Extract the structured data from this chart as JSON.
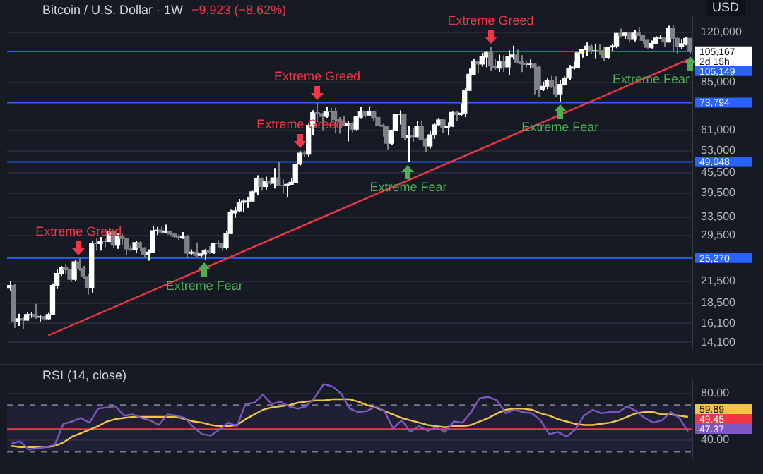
{
  "chart_data": [
    {
      "type": "candlestick",
      "title": "Bitcoin / U.S. Dollar · 1W",
      "subtitle": "−9,923 (−8.62%)",
      "ylabel": "USD",
      "colors": [
        "#ffffff",
        "#7f8187",
        "#ffffff",
        "#7f8187",
        "#ffffff",
        "#ffffff",
        "#7f8187",
        "#ffffff",
        "#7f8187",
        "#ffffff",
        "#ffffff",
        "#ffffff",
        "#ffffff",
        "#7f8187",
        "#7f8187",
        "#ffffff",
        "#7f8187",
        "#7f8187",
        "#7f8187",
        "#ffffff",
        "#7f8187",
        "#ffffff",
        "#7f8187",
        "#ffffff",
        "#7f8187",
        "#ffffff",
        "#7f8187",
        "#7f8187",
        "#7f8187",
        "#ffffff",
        "#7f8187",
        "#7f8187",
        "#ffffff",
        "#ffffff",
        "#ffffff",
        "#7f8187",
        "#ffffff",
        "#7f8187",
        "#7f8187",
        "#7f8187",
        "#ffffff",
        "#7f8187",
        "#ffffff",
        "#7f8187",
        "#ffffff",
        "#ffffff",
        "#7f8187",
        "#ffffff",
        "#7f8187",
        "#7f8187",
        "#ffffff",
        "#ffffff",
        "#ffffff",
        "#ffffff",
        "#ffffff",
        "#ffffff",
        "#ffffff",
        "#ffffff",
        "#7f8187",
        "#ffffff",
        "#7f8187",
        "#ffffff",
        "#7f8187",
        "#7f8187",
        "#ffffff",
        "#ffffff",
        "#ffffff",
        "#ffffff",
        "#7f8187",
        "#ffffff",
        "#ffffff",
        "#7f8187",
        "#7f8187",
        "#ffffff",
        "#7f8187",
        "#7f8187",
        "#7f8187",
        "#7f8187",
        "#ffffff",
        "#7f8187",
        "#ffffff",
        "#ffffff",
        "#7f8187",
        "#ffffff",
        "#7f8187",
        "#7f8187",
        "#7f8187",
        "#7f8187",
        "#ffffff",
        "#ffffff",
        "#ffffff",
        "#7f8187",
        "#ffffff",
        "#7f8187",
        "#ffffff",
        "#7f8187",
        "#7f8187",
        "#ffffff",
        "#ffffff",
        "#ffffff",
        "#7f8187",
        "#ffffff",
        "#ffffff",
        "#7f8187",
        "#ffffff",
        "#ffffff",
        "#ffffff",
        "#ffffff",
        "#7f8187",
        "#ffffff",
        "#ffffff",
        "#7f8187",
        "#7f8187",
        "#ffffff",
        "#7f8187",
        "#ffffff",
        "#ffffff",
        "#7f8187",
        "#7f8187",
        "#7f8187",
        "#ffffff",
        "#7f8187",
        "#7f8187",
        "#ffffff",
        "#ffffff",
        "#7f8187",
        "#7f8187",
        "#ffffff",
        "#ffffff",
        "#ffffff",
        "#ffffff",
        "#ffffff",
        "#ffffff",
        "#ffffff",
        "#7f8187",
        "#ffffff",
        "#7f8187",
        "#7f8187",
        "#ffffff",
        "#ffffff",
        "#ffffff",
        "#7f8187",
        "#ffffff",
        "#7f8187",
        "#ffffff",
        "#7f8187",
        "#7f8187",
        "#7f8187",
        "#ffffff",
        "#ffffff",
        "#ffffff",
        "#7f8187",
        "#ffffff",
        "#7f8187",
        "#7f8187",
        "#ffffff",
        "#ffffff",
        "#7f8187"
      ],
      "categories": [
        null,
        null,
        null,
        null,
        null,
        null,
        null,
        null,
        null,
        null,
        null,
        null,
        null,
        null,
        null,
        null,
        null,
        null,
        null,
        null,
        null,
        null,
        null,
        null,
        null,
        null,
        null,
        null,
        null,
        null,
        null,
        null,
        null,
        null,
        null,
        null,
        null,
        null,
        null,
        null,
        null,
        null,
        null,
        null,
        null,
        null,
        null,
        null,
        null,
        null,
        null,
        null,
        null,
        null,
        null,
        null,
        null,
        null,
        null,
        null,
        null,
        null,
        null,
        null,
        null,
        null,
        null,
        null,
        null,
        null,
        null,
        null,
        null,
        null,
        null,
        null,
        null,
        null,
        null,
        null,
        null,
        null,
        null,
        null,
        null,
        null,
        null,
        null,
        null,
        null,
        null,
        null,
        null,
        null,
        null,
        null,
        null,
        null,
        null,
        null,
        null,
        null,
        null,
        null,
        null,
        null,
        null,
        null,
        null,
        null,
        null,
        null,
        null,
        null,
        null,
        null,
        null,
        null,
        null,
        null,
        null,
        null,
        null,
        null,
        null,
        null,
        null,
        null,
        null,
        null,
        null,
        null,
        null,
        null,
        null,
        null,
        null,
        null,
        null,
        null,
        null,
        null,
        null,
        null,
        null,
        null,
        null,
        null,
        null,
        null,
        null,
        null,
        null,
        null,
        null,
        null,
        null,
        null
      ],
      "ohlc": [
        [
          20500,
          21500,
          20100,
          20900
        ],
        [
          20900,
          21100,
          15600,
          16300
        ],
        [
          16300,
          17200,
          15800,
          16600
        ],
        [
          16600,
          16800,
          15500,
          16450
        ],
        [
          16450,
          17400,
          16400,
          17100
        ],
        [
          17100,
          17400,
          16700,
          17100
        ],
        [
          17100,
          18400,
          16600,
          16800
        ],
        [
          16800,
          17000,
          16300,
          16850
        ],
        [
          16850,
          16950,
          16400,
          16600
        ],
        [
          16600,
          17300,
          16500,
          17100
        ],
        [
          17100,
          21200,
          17100,
          20900
        ],
        [
          20900,
          23300,
          20400,
          22700
        ],
        [
          22700,
          23900,
          22300,
          23700
        ],
        [
          23700,
          24200,
          22700,
          23300
        ],
        [
          23300,
          23400,
          21400,
          21800
        ],
        [
          21800,
          25000,
          21500,
          24600
        ],
        [
          24600,
          25200,
          23100,
          23500
        ],
        [
          23500,
          23900,
          21900,
          22200
        ],
        [
          22200,
          22600,
          19600,
          20600
        ],
        [
          20600,
          28400,
          19900,
          28000
        ],
        [
          28000,
          28900,
          26600,
          27900
        ],
        [
          27900,
          29200,
          26600,
          28400
        ],
        [
          28400,
          28800,
          27200,
          28300
        ],
        [
          28300,
          31000,
          28200,
          30300
        ],
        [
          30300,
          30400,
          27100,
          27600
        ],
        [
          27600,
          30000,
          26900,
          29300
        ],
        [
          29300,
          29800,
          27700,
          28900
        ],
        [
          28900,
          29000,
          25800,
          26900
        ],
        [
          26900,
          27500,
          26500,
          26800
        ],
        [
          26800,
          28400,
          26100,
          28100
        ],
        [
          28100,
          28400,
          26500,
          27100
        ],
        [
          27100,
          27200,
          25400,
          25800
        ],
        [
          25800,
          26800,
          24800,
          26300
        ],
        [
          26300,
          31400,
          26200,
          30500
        ],
        [
          30500,
          31300,
          29600,
          30600
        ],
        [
          30600,
          31400,
          29800,
          30200
        ],
        [
          30200,
          31800,
          29900,
          30300
        ],
        [
          30300,
          30400,
          29500,
          29800
        ],
        [
          29800,
          30100,
          28900,
          29300
        ],
        [
          29300,
          29700,
          28600,
          29000
        ],
        [
          29000,
          30200,
          28800,
          29300
        ],
        [
          29300,
          29700,
          25200,
          26100
        ],
        [
          26100,
          26800,
          25800,
          26300
        ],
        [
          26300,
          28100,
          25400,
          25700
        ],
        [
          25700,
          26100,
          25300,
          26000
        ],
        [
          26000,
          26900,
          24900,
          26600
        ],
        [
          26600,
          27400,
          26000,
          26200
        ],
        [
          26200,
          28000,
          26000,
          28000
        ],
        [
          28000,
          28600,
          27200,
          27900
        ],
        [
          27900,
          28000,
          26600,
          27100
        ],
        [
          27100,
          30400,
          26800,
          29900
        ],
        [
          29900,
          35200,
          29800,
          34500
        ],
        [
          34500,
          35900,
          33400,
          35000
        ],
        [
          35000,
          38000,
          34600,
          37100
        ],
        [
          37100,
          37900,
          34800,
          37400
        ],
        [
          37400,
          38400,
          35700,
          37400
        ],
        [
          37400,
          40200,
          37100,
          39900
        ],
        [
          39900,
          44700,
          39000,
          43800
        ],
        [
          43800,
          44000,
          40200,
          41400
        ],
        [
          41400,
          44300,
          40500,
          42900
        ],
        [
          42900,
          43800,
          41800,
          42300
        ],
        [
          42300,
          47000,
          40800,
          43900
        ],
        [
          43900,
          48900,
          41500,
          41700
        ],
        [
          41700,
          43500,
          39500,
          41600
        ],
        [
          41600,
          42200,
          38500,
          42000
        ],
        [
          42000,
          43800,
          41900,
          42600
        ],
        [
          42600,
          48500,
          42300,
          48300
        ],
        [
          48300,
          52800,
          47800,
          52100
        ],
        [
          52100,
          52900,
          50600,
          51700
        ],
        [
          51700,
          64000,
          50900,
          63100
        ],
        [
          63100,
          70100,
          59100,
          68900
        ],
        [
          68900,
          73794,
          64500,
          68400
        ],
        [
          68400,
          68900,
          60800,
          67200
        ],
        [
          67200,
          71700,
          66500,
          69600
        ],
        [
          69600,
          71300,
          64500,
          69400
        ],
        [
          69400,
          71300,
          59700,
          65700
        ],
        [
          65700,
          66800,
          59600,
          64900
        ],
        [
          64900,
          67200,
          62800,
          63100
        ],
        [
          63100,
          65000,
          56500,
          63900
        ],
        [
          63900,
          64500,
          60200,
          61500
        ],
        [
          61500,
          67400,
          60700,
          66900
        ],
        [
          66900,
          71900,
          66300,
          69300
        ],
        [
          69300,
          69500,
          66700,
          67800
        ],
        [
          67800,
          72000,
          67600,
          69600
        ],
        [
          69600,
          70000,
          65100,
          66600
        ],
        [
          66600,
          66900,
          63000,
          63200
        ],
        [
          63200,
          63800,
          58400,
          62700
        ],
        [
          62700,
          63000,
          53500,
          55800
        ],
        [
          55800,
          61300,
          55000,
          60800
        ],
        [
          60800,
          68400,
          60600,
          68100
        ],
        [
          68100,
          70000,
          63500,
          68200
        ],
        [
          68200,
          68300,
          57100,
          58100
        ],
        [
          58100,
          62700,
          49048,
          58700
        ],
        [
          58700,
          61800,
          56100,
          58400
        ],
        [
          58400,
          64900,
          57800,
          62800
        ],
        [
          62800,
          65000,
          57200,
          57300
        ],
        [
          57300,
          58000,
          52500,
          54800
        ],
        [
          54800,
          60600,
          53800,
          59100
        ],
        [
          59100,
          64100,
          57500,
          63400
        ],
        [
          63400,
          66500,
          62700,
          65600
        ],
        [
          65600,
          66000,
          59800,
          62100
        ],
        [
          62100,
          64400,
          58900,
          62800
        ],
        [
          62800,
          69400,
          62400,
          69000
        ],
        [
          69000,
          69500,
          65100,
          68000
        ],
        [
          68000,
          73600,
          67400,
          68700
        ],
        [
          68700,
          81500,
          66800,
          80400
        ],
        [
          80400,
          93400,
          80200,
          89800
        ],
        [
          89800,
          99600,
          89400,
          97900
        ],
        [
          97900,
          98700,
          90800,
          96400
        ],
        [
          96400,
          104000,
          94600,
          101200
        ],
        [
          101200,
          105200,
          94200,
          104300
        ],
        [
          104300,
          108300,
          92200,
          95200
        ],
        [
          95200,
          99900,
          92600,
          93700
        ],
        [
          93700,
          102700,
          91300,
          98300
        ],
        [
          98300,
          102500,
          91200,
          94500
        ],
        [
          94500,
          106000,
          89300,
          101300
        ],
        [
          101300,
          109400,
          99500,
          102600
        ],
        [
          102600,
          106400,
          96600,
          97700
        ],
        [
          97700,
          102500,
          91200,
          96500
        ],
        [
          96500,
          98700,
          94100,
          96100
        ],
        [
          96100,
          99500,
          93400,
          96300
        ],
        [
          96300,
          96500,
          78200,
          94200
        ],
        [
          94200,
          95000,
          76600,
          80700
        ],
        [
          80700,
          85300,
          80000,
          82600
        ],
        [
          82600,
          87400,
          81100,
          86100
        ],
        [
          86100,
          88800,
          81600,
          82300
        ],
        [
          82300,
          88500,
          77000,
          78400
        ],
        [
          78400,
          86100,
          74500,
          83700
        ],
        [
          83700,
          88400,
          83100,
          87500
        ],
        [
          87500,
          95700,
          86500,
          93700
        ],
        [
          93700,
          97900,
          92800,
          94300
        ],
        [
          94300,
          104300,
          93400,
          104100
        ],
        [
          104100,
          106700,
          100700,
          106500
        ],
        [
          106500,
          111900,
          102000,
          109000
        ],
        [
          109000,
          110700,
          103100,
          105700
        ],
        [
          105700,
          110500,
          100400,
          105700
        ],
        [
          105700,
          110600,
          102700,
          105600
        ],
        [
          105600,
          108900,
          98200,
          100900
        ],
        [
          100900,
          108500,
          99600,
          108400
        ],
        [
          108400,
          110500,
          105100,
          109200
        ],
        [
          109200,
          119500,
          107500,
          119100
        ],
        [
          119100,
          123200,
          115700,
          117300
        ],
        [
          117300,
          120200,
          114700,
          119400
        ],
        [
          119400,
          119800,
          112000,
          114200
        ],
        [
          114200,
          122300,
          112700,
          119300
        ],
        [
          119300,
          124500,
          117200,
          117400
        ],
        [
          117400,
          117600,
          110800,
          113500
        ],
        [
          113500,
          113800,
          107300,
          108200
        ],
        [
          108200,
          113400,
          107300,
          111100
        ],
        [
          111100,
          116800,
          110600,
          115300
        ],
        [
          115300,
          117900,
          114700,
          115300
        ],
        [
          115300,
          115400,
          108600,
          112200
        ],
        [
          112200,
          125600,
          111800,
          123500
        ],
        [
          123500,
          126200,
          104600,
          115100
        ],
        [
          115100,
          115900,
          103500,
          108600
        ],
        [
          108600,
          114000,
          106700,
          111000
        ],
        [
          111000,
          116400,
          109700,
          115090
        ],
        [
          115090,
          115300,
          103600,
          105167
        ]
      ],
      "series": [
        {
          "type": "line",
          "color": "#f23645",
          "values": [
            null,
            null,
            null,
            null,
            null,
            null,
            null,
            null,
            null,
            14800,
            null,
            null,
            null,
            null,
            null,
            null,
            null,
            null,
            null,
            null,
            null,
            null,
            null,
            null,
            null,
            null,
            null,
            null,
            null,
            null,
            null,
            null,
            null,
            null,
            null,
            null,
            null,
            null,
            null,
            null,
            null,
            null,
            null,
            null,
            null,
            null,
            null,
            null,
            null,
            null,
            null,
            null,
            null,
            null,
            null,
            null,
            null,
            null,
            null,
            null,
            null,
            null,
            null,
            null,
            null,
            null,
            null,
            null,
            null,
            null,
            null,
            null,
            null,
            null,
            null,
            null,
            null,
            null,
            null,
            null,
            null,
            null,
            null,
            null,
            null,
            null,
            null,
            null,
            null,
            null,
            null,
            null,
            null,
            null,
            null,
            null,
            null,
            null,
            null,
            null,
            null,
            null,
            null,
            null,
            null,
            null,
            null,
            null,
            null,
            null,
            null,
            null,
            null,
            null,
            null,
            null,
            null,
            null,
            null,
            null,
            null,
            null,
            null,
            null,
            null,
            null,
            null,
            null,
            null,
            null,
            null,
            null,
            null,
            null,
            null,
            null,
            null,
            null,
            null,
            null,
            null,
            null,
            null,
            null,
            null,
            null,
            null,
            null,
            null,
            null,
            null,
            null,
            null,
            null,
            null,
            null,
            null,
            100000
          ]
        }
      ],
      "log": true,
      "ylim": [
        13500,
        135000
      ],
      "yticks": [
        {
          "value": 14100,
          "label": "14,100"
        },
        {
          "value": 16100,
          "label": "16,100"
        },
        {
          "value": 18500,
          "label": "18,500"
        },
        {
          "value": 21500,
          "label": "21,500"
        },
        {
          "value": 29500,
          "label": "29,500"
        },
        {
          "value": 33500,
          "label": "33,500"
        },
        {
          "value": 39500,
          "label": "39,500"
        },
        {
          "value": 45500,
          "label": "45,500"
        },
        {
          "value": 53000,
          "label": "53,000"
        },
        {
          "value": 61000,
          "label": "61,000"
        },
        {
          "value": 85000,
          "label": "85,000"
        },
        {
          "value": 120000,
          "label": "120,000"
        }
      ],
      "grid": "y",
      "ref_lines": [
        {
          "axis": "y",
          "value": 105149,
          "label": "105,149",
          "color": "#2962ff"
        },
        {
          "axis": "y",
          "value": 73794,
          "label": "73,794",
          "color": "#2962ff"
        },
        {
          "axis": "y",
          "value": 49048,
          "label": "49,048",
          "color": "#2962ff"
        },
        {
          "axis": "y",
          "value": 25270,
          "label": "25,270",
          "color": "#2962ff"
        }
      ],
      "annotations": [
        {
          "text": "Extreme Greed",
          "y": 25200
        },
        {
          "text": "Extreme Fear",
          "y": 24900
        },
        {
          "text": "Extreme Greed",
          "y": 52800
        },
        {
          "text": "Extreme Greed",
          "y": 73794
        },
        {
          "text": "Extreme Fear",
          "y": 49048
        },
        {
          "text": "Extreme Greed",
          "y": 108300
        },
        {
          "text": "Extreme Fear",
          "y": 74500
        },
        {
          "text": "Extreme Fear",
          "y": 103600
        },
        "105,167",
        "2d 15h"
      ]
    },
    {
      "type": "line",
      "title": "RSI (14, close)",
      "categories": [
        null,
        null,
        null,
        null,
        null,
        null,
        null,
        null,
        null,
        null,
        null,
        null,
        null,
        null,
        null,
        null,
        null,
        null,
        null,
        null,
        null,
        null,
        null,
        null,
        null,
        null,
        null,
        null,
        null,
        null,
        null,
        null,
        null,
        null,
        null,
        null,
        null,
        null,
        null,
        null,
        null,
        null,
        null,
        null,
        null,
        null,
        null,
        null,
        null,
        null,
        null,
        null,
        null,
        null,
        null,
        null,
        null,
        null,
        null,
        null,
        null,
        null,
        null,
        null,
        null,
        null,
        null,
        null,
        null,
        null,
        null,
        null,
        null,
        null,
        null,
        null,
        null,
        null,
        null
      ],
      "series": [
        {
          "color": "#7e57c2",
          "values": [
            37,
            39,
            32,
            33,
            34,
            36,
            54,
            56,
            59,
            55,
            67,
            68,
            69,
            61,
            62,
            59,
            57,
            53,
            62,
            61,
            59,
            51,
            45,
            44,
            49,
            55,
            52,
            71,
            72,
            79,
            71,
            73,
            69,
            67,
            69,
            77,
            88,
            86,
            80,
            67,
            64,
            65,
            69,
            65,
            50,
            57,
            47,
            52,
            48,
            51,
            47,
            56,
            55,
            64,
            76,
            77,
            74,
            63,
            66,
            64,
            63,
            57,
            45,
            47,
            43,
            49,
            61,
            66,
            63,
            64,
            64,
            69,
            65,
            59,
            55,
            57,
            64,
            59,
            47.37
          ],
          "value_labels": [
            null,
            null,
            null,
            null,
            null,
            null,
            null,
            null,
            null,
            null,
            null,
            null,
            null,
            null,
            null,
            null,
            null,
            null,
            null,
            null,
            null,
            null,
            null,
            null,
            null,
            null,
            null,
            null,
            null,
            null,
            null,
            null,
            null,
            null,
            null,
            null,
            null,
            null,
            null,
            null,
            null,
            null,
            null,
            null,
            null,
            null,
            null,
            null,
            null,
            null,
            null,
            null,
            null,
            null,
            null,
            null,
            null,
            null,
            null,
            null,
            null,
            null,
            null,
            null,
            null,
            null,
            null,
            null,
            null,
            null,
            null,
            null,
            null,
            null,
            null,
            null,
            null,
            null,
            "47.37"
          ]
        },
        {
          "color": "#f0c545",
          "values": [
            35,
            34,
            34,
            34,
            34,
            35,
            38,
            43,
            46,
            49,
            52,
            56,
            58,
            59,
            60,
            60,
            60,
            60,
            60,
            60,
            58,
            56,
            55,
            53,
            52,
            52,
            53,
            58,
            62,
            66,
            68,
            69,
            70,
            72,
            73,
            74,
            74,
            75,
            75,
            75,
            73,
            70,
            68,
            65,
            62,
            59,
            57,
            55,
            53,
            52,
            51,
            52,
            52,
            53,
            56,
            59,
            63,
            66,
            67,
            67,
            66,
            63,
            61,
            58,
            56,
            54,
            53,
            53,
            54,
            55,
            57,
            60,
            63,
            64,
            64,
            62,
            62,
            61,
            59.89
          ],
          "value_labels": [
            null,
            null,
            null,
            null,
            null,
            null,
            null,
            null,
            null,
            null,
            null,
            null,
            null,
            null,
            null,
            null,
            null,
            null,
            null,
            null,
            null,
            null,
            null,
            null,
            null,
            null,
            null,
            null,
            null,
            null,
            null,
            null,
            null,
            null,
            null,
            null,
            null,
            null,
            null,
            null,
            null,
            null,
            null,
            null,
            null,
            null,
            null,
            null,
            null,
            null,
            null,
            null,
            null,
            null,
            null,
            null,
            null,
            null,
            null,
            null,
            null,
            null,
            null,
            null,
            null,
            null,
            null,
            null,
            null,
            null,
            null,
            null,
            null,
            null,
            null,
            null,
            null,
            null,
            "59.89"
          ]
        }
      ],
      "ylim": [
        24,
        91
      ],
      "yticks": [
        {
          "value": 80,
          "label": "80.00"
        },
        {
          "value": 40,
          "label": "40.00"
        }
      ],
      "grid": "y",
      "marker": "none",
      "ref_lines": [
        {
          "axis": "y",
          "value": 49.45,
          "label": "49.45",
          "color": "#f23645"
        },
        {
          "axis": "y",
          "value": 70,
          "color": "#787b86",
          "line_style": "dashed"
        },
        {
          "axis": "y",
          "value": 30,
          "color": "#787b86",
          "line_style": "dashed"
        }
      ],
      "bands": [
        {
          "axis": "y",
          "from": 30,
          "to": 70,
          "color": "#7e57c2"
        }
      ]
    }
  ]
}
